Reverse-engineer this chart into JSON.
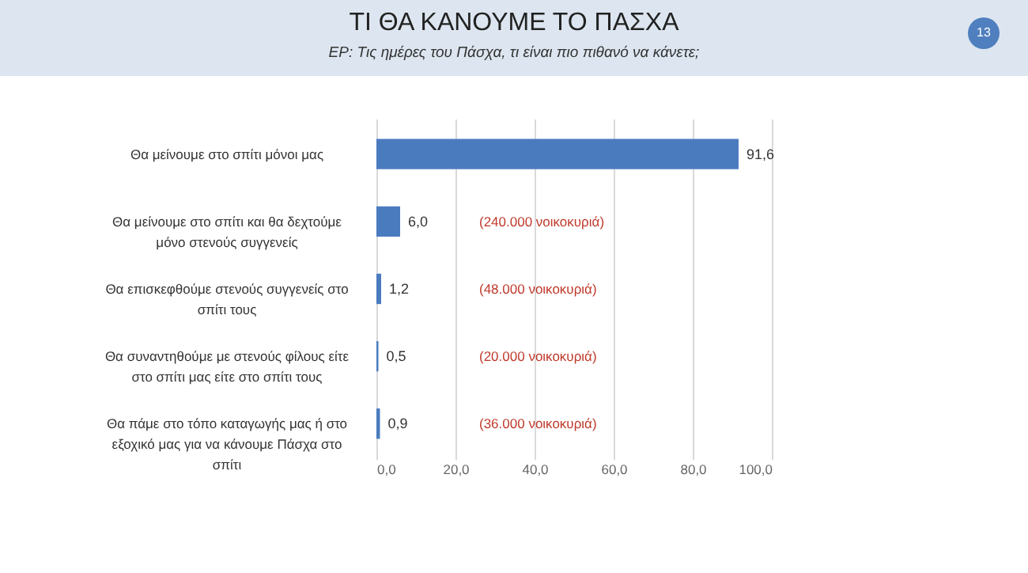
{
  "chart_data": {
    "type": "bar",
    "orientation": "horizontal",
    "title": "ΤΙ ΘΑ ΚΑΝΟΥΜΕ ΤΟ ΠΑΣΧΑ",
    "subtitle": "ΕΡ: Τις ημέρες του Πάσχα, τι είναι πιο πιθανό να κάνετε;",
    "categories": [
      "Θα μείνουμε στο σπίτι μόνοι μας",
      "Θα μείνουμε στο σπίτι και θα δεχτούμε μόνο στενούς συγγενείς",
      "Θα επισκεφθούμε στενούς συγγενείς στο σπίτι τους",
      "Θα συναντηθούμε με στενούς φίλους είτε στο σπίτι μας είτε στο σπίτι τους",
      "Θα πάμε στο τόπο καταγωγής μας ή στο εξοχικό μας για να κάνουμε Πάσχα στο σπίτι"
    ],
    "values": [
      91.6,
      6.0,
      1.2,
      0.5,
      0.9
    ],
    "value_labels": [
      "91,6",
      "6,0",
      "1,2",
      "0,5",
      "0,9"
    ],
    "color": "#4a7bbf",
    "xlim": [
      0,
      100
    ],
    "xticks": [
      {
        "value": 0,
        "label": "0,0"
      },
      {
        "value": 20,
        "label": "20,0"
      },
      {
        "value": 40,
        "label": "40,0"
      },
      {
        "value": 60,
        "label": "60,0"
      },
      {
        "value": 80,
        "label": "80,0"
      },
      {
        "value": 100,
        "label": "100,0"
      }
    ],
    "grid": "x",
    "annotations": [
      "13",
      "(240.000 νοικοκυριά)",
      "(48.000 νοικοκυριά)",
      "(20.000 νοικοκυριά)",
      "(36.000 νοικοκυριά)"
    ]
  }
}
